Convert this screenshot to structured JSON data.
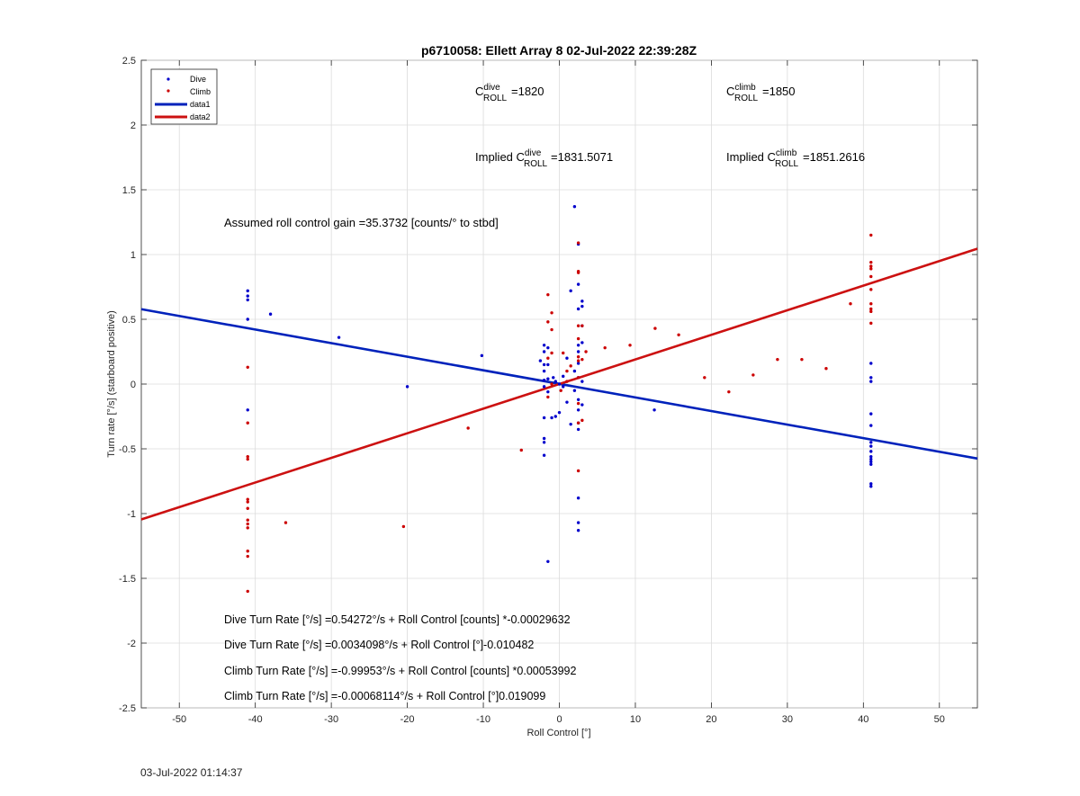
{
  "footer_timestamp": "03-Jul-2022 01:14:37",
  "chart_data": {
    "type": "scatter",
    "title": "p6710058: Ellett Array 8 02-Jul-2022 22:39:28Z",
    "xlabel": "Roll Control [°]",
    "ylabel": "Turn rate [°/s] (starboard positive)",
    "xlim": [
      -55,
      55
    ],
    "ylim": [
      -2.5,
      2.5
    ],
    "xticks": [
      -50,
      -40,
      -30,
      -20,
      -10,
      0,
      10,
      20,
      30,
      40,
      50
    ],
    "yticks": [
      -2.5,
      -2,
      -1.5,
      -1,
      -0.5,
      0,
      0.5,
      1,
      1.5,
      2,
      2.5
    ],
    "grid": true,
    "legend_position": "top-left",
    "legend": [
      {
        "label": "Dive",
        "kind": "marker",
        "color": "#0000cc"
      },
      {
        "label": "Climb",
        "kind": "marker",
        "color": "#cc0000"
      },
      {
        "label": "data1",
        "kind": "line",
        "color": "#0022bb"
      },
      {
        "label": "data2",
        "kind": "line",
        "color": "#cc1111"
      }
    ],
    "series": [
      {
        "name": "Dive",
        "type": "scatter",
        "color": "#0000cc",
        "points": [
          [
            -41,
            0.72
          ],
          [
            -41,
            0.68
          ],
          [
            -41,
            0.65
          ],
          [
            -41,
            0.5
          ],
          [
            -41,
            -0.2
          ],
          [
            -38,
            0.54
          ],
          [
            -29,
            0.36
          ],
          [
            -20,
            -0.02
          ],
          [
            -10.2,
            0.22
          ],
          [
            -2.5,
            0.18
          ],
          [
            -2,
            0.3
          ],
          [
            -2,
            0.25
          ],
          [
            -2,
            0.15
          ],
          [
            -2,
            0.1
          ],
          [
            -2,
            0.03
          ],
          [
            -2,
            -0.02
          ],
          [
            -2,
            -0.26
          ],
          [
            -2,
            -0.42
          ],
          [
            -2,
            -0.45
          ],
          [
            -2,
            -0.55
          ],
          [
            -1.5,
            0.28
          ],
          [
            -1.5,
            0.15
          ],
          [
            -1.5,
            0.04
          ],
          [
            -1.5,
            -0.06
          ],
          [
            -1.5,
            -1.37
          ],
          [
            -1,
            -0.26
          ],
          [
            -0.8,
            0.05
          ],
          [
            -0.5,
            0.02
          ],
          [
            -0.5,
            -0.25
          ],
          [
            0,
            0
          ],
          [
            0,
            -0.22
          ],
          [
            0.5,
            0.06
          ],
          [
            0.5,
            -0.02
          ],
          [
            1,
            0.2
          ],
          [
            1,
            -0.14
          ],
          [
            1.5,
            0.72
          ],
          [
            1.5,
            -0.31
          ],
          [
            2,
            1.37
          ],
          [
            2,
            0.1
          ],
          [
            2,
            -0.05
          ],
          [
            2.5,
            1.08
          ],
          [
            2.5,
            0.77
          ],
          [
            2.5,
            0.58
          ],
          [
            2.5,
            0.3
          ],
          [
            2.5,
            0.25
          ],
          [
            2.5,
            0.16
          ],
          [
            2.5,
            0.05
          ],
          [
            2.5,
            -0.12
          ],
          [
            2.5,
            -0.2
          ],
          [
            2.5,
            -0.3
          ],
          [
            2.5,
            -0.35
          ],
          [
            2.5,
            -0.88
          ],
          [
            2.5,
            -1.07
          ],
          [
            2.5,
            -1.13
          ],
          [
            3,
            0.64
          ],
          [
            3,
            0.6
          ],
          [
            3,
            0.45
          ],
          [
            3,
            0.32
          ],
          [
            3,
            0.02
          ],
          [
            3,
            -0.16
          ],
          [
            12.5,
            -0.2
          ],
          [
            41,
            0.16
          ],
          [
            41,
            0.05
          ],
          [
            41,
            0.02
          ],
          [
            41,
            -0.23
          ],
          [
            41,
            -0.32
          ],
          [
            41,
            -0.45
          ],
          [
            41,
            -0.48
          ],
          [
            41,
            -0.52
          ],
          [
            41,
            -0.56
          ],
          [
            41,
            -0.58
          ],
          [
            41,
            -0.6
          ],
          [
            41,
            -0.62
          ],
          [
            41,
            -0.77
          ],
          [
            41,
            -0.79
          ]
        ]
      },
      {
        "name": "Climb",
        "type": "scatter",
        "color": "#cc0000",
        "points": [
          [
            -41,
            0.13
          ],
          [
            -41,
            -0.3
          ],
          [
            -41,
            -0.56
          ],
          [
            -41,
            -0.58
          ],
          [
            -41,
            -0.89
          ],
          [
            -41,
            -0.91
          ],
          [
            -41,
            -0.96
          ],
          [
            -41,
            -1.05
          ],
          [
            -41,
            -1.08
          ],
          [
            -41,
            -1.11
          ],
          [
            -41,
            -1.29
          ],
          [
            -41,
            -1.33
          ],
          [
            -41,
            -1.6
          ],
          [
            -36,
            -1.07
          ],
          [
            -20.5,
            -1.1
          ],
          [
            -12,
            -0.34
          ],
          [
            -5,
            -0.51
          ],
          [
            -1.5,
            0.69
          ],
          [
            -1.5,
            0.48
          ],
          [
            -1.5,
            0.2
          ],
          [
            -1.5,
            -0.1
          ],
          [
            -1,
            0.55
          ],
          [
            -1,
            0.42
          ],
          [
            -1,
            0.24
          ],
          [
            -1,
            0.0
          ],
          [
            0.2,
            -0.05
          ],
          [
            0.5,
            0.24
          ],
          [
            1,
            0.1
          ],
          [
            1,
            0.02
          ],
          [
            1.5,
            0.14
          ],
          [
            2.5,
            1.09
          ],
          [
            2.5,
            0.87
          ],
          [
            2.5,
            0.86
          ],
          [
            2.5,
            0.45
          ],
          [
            2.5,
            0.35
          ],
          [
            2.5,
            0.21
          ],
          [
            2.5,
            0.18
          ],
          [
            2.5,
            0.05
          ],
          [
            2.5,
            -0.15
          ],
          [
            2.5,
            -0.3
          ],
          [
            2.5,
            -0.67
          ],
          [
            3,
            0.45
          ],
          [
            3,
            0.19
          ],
          [
            3,
            -0.28
          ],
          [
            3.5,
            0.25
          ],
          [
            6,
            0.28
          ],
          [
            9.3,
            0.3
          ],
          [
            12.6,
            0.43
          ],
          [
            15.7,
            0.38
          ],
          [
            19.1,
            0.05
          ],
          [
            22.3,
            -0.06
          ],
          [
            25.5,
            0.07
          ],
          [
            28.7,
            0.19
          ],
          [
            31.9,
            0.19
          ],
          [
            35.1,
            0.12
          ],
          [
            38.3,
            0.62
          ],
          [
            41,
            1.15
          ],
          [
            41,
            0.94
          ],
          [
            41,
            0.91
          ],
          [
            41,
            0.89
          ],
          [
            41,
            0.83
          ],
          [
            41,
            0.73
          ],
          [
            41,
            0.62
          ],
          [
            41,
            0.58
          ],
          [
            41,
            0.56
          ],
          [
            41,
            0.47
          ]
        ]
      },
      {
        "name": "data1",
        "type": "line",
        "color": "#0022bb",
        "points": [
          [
            -55,
            0.578
          ],
          [
            55,
            -0.575
          ]
        ]
      },
      {
        "name": "data2",
        "type": "line",
        "color": "#cc1111",
        "points": [
          [
            -55,
            -1.045
          ],
          [
            55,
            1.045
          ]
        ]
      }
    ],
    "annotations": {
      "c_dive": {
        "prefix": "C",
        "sup": "dive",
        "sub": "ROLL",
        "value": "=1820"
      },
      "c_climb": {
        "prefix": "C",
        "sup": "climb",
        "sub": "ROLL",
        "value": "=1850"
      },
      "implied_dive": {
        "prefix": "Implied C",
        "sup": "dive",
        "sub": "ROLL",
        "value": "=1831.5071"
      },
      "implied_climb": {
        "prefix": "Implied C",
        "sup": "climb",
        "sub": "ROLL",
        "value": "=1851.2616"
      },
      "gain": "Assumed roll control gain =35.3732 [counts/° to stbd]",
      "eq_dive_counts": "Dive Turn Rate [°/s] =0.54272°/s + Roll Control [counts] *-0.00029632",
      "eq_dive_deg": "Dive Turn Rate [°/s] =0.0034098°/s + Roll Control [°]-0.010482",
      "eq_climb_counts": "Climb Turn Rate [°/s] =-0.99953°/s + Roll Control [counts] *0.00053992",
      "eq_climb_deg": "Climb Turn Rate [°/s] =-0.00068114°/s + Roll Control [°]0.019099"
    }
  }
}
